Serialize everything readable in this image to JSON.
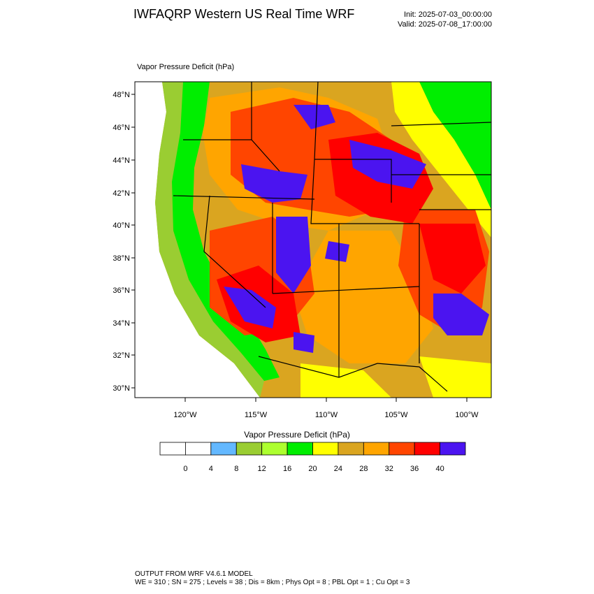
{
  "header": {
    "title": "IWFAQRP Western US Real Time WRF",
    "init": "Init: 2025-07-03_00:00:00",
    "valid": "Valid: 2025-07-08_17:00:00"
  },
  "map": {
    "field_label": "Vapor Pressure Deficit   (hPa)",
    "lat_labels": [
      "48°N",
      "46°N",
      "44°N",
      "42°N",
      "40°N",
      "38°N",
      "36°N",
      "34°N",
      "32°N",
      "30°N"
    ],
    "lon_labels": [
      "120°W",
      "115°W",
      "110°W",
      "105°W",
      "100°W"
    ],
    "region_colors": {
      "ocean": "#ffffff",
      "wet_coast": "#9acd32",
      "moist": "#00ee00",
      "dry": "#ffff00",
      "drier": "#daa520",
      "very_dry": "#ffa500",
      "extreme": "#ff4500",
      "severe": "#ff0000",
      "max": "#4b14f0"
    }
  },
  "colorbar": {
    "title": "Vapor Pressure Deficit  (hPa)",
    "colors": [
      "#ffffff",
      "#ffffff",
      "#63b8ff",
      "#9acd32",
      "#adff2f",
      "#00ee00",
      "#ffff00",
      "#daa520",
      "#ffa500",
      "#ff4500",
      "#ff0000",
      "#4b14f0"
    ],
    "labels": [
      "0",
      "4",
      "8",
      "12",
      "16",
      "20",
      "24",
      "28",
      "32",
      "36",
      "40"
    ]
  },
  "footer": {
    "line1": "OUTPUT FROM WRF V4.6.1 MODEL",
    "line2": "WE = 310 ; SN = 275 ; Levels = 38 ; Dis = 8km ; Phys Opt = 8 ; PBL Opt = 1 ; Cu Opt = 3"
  }
}
